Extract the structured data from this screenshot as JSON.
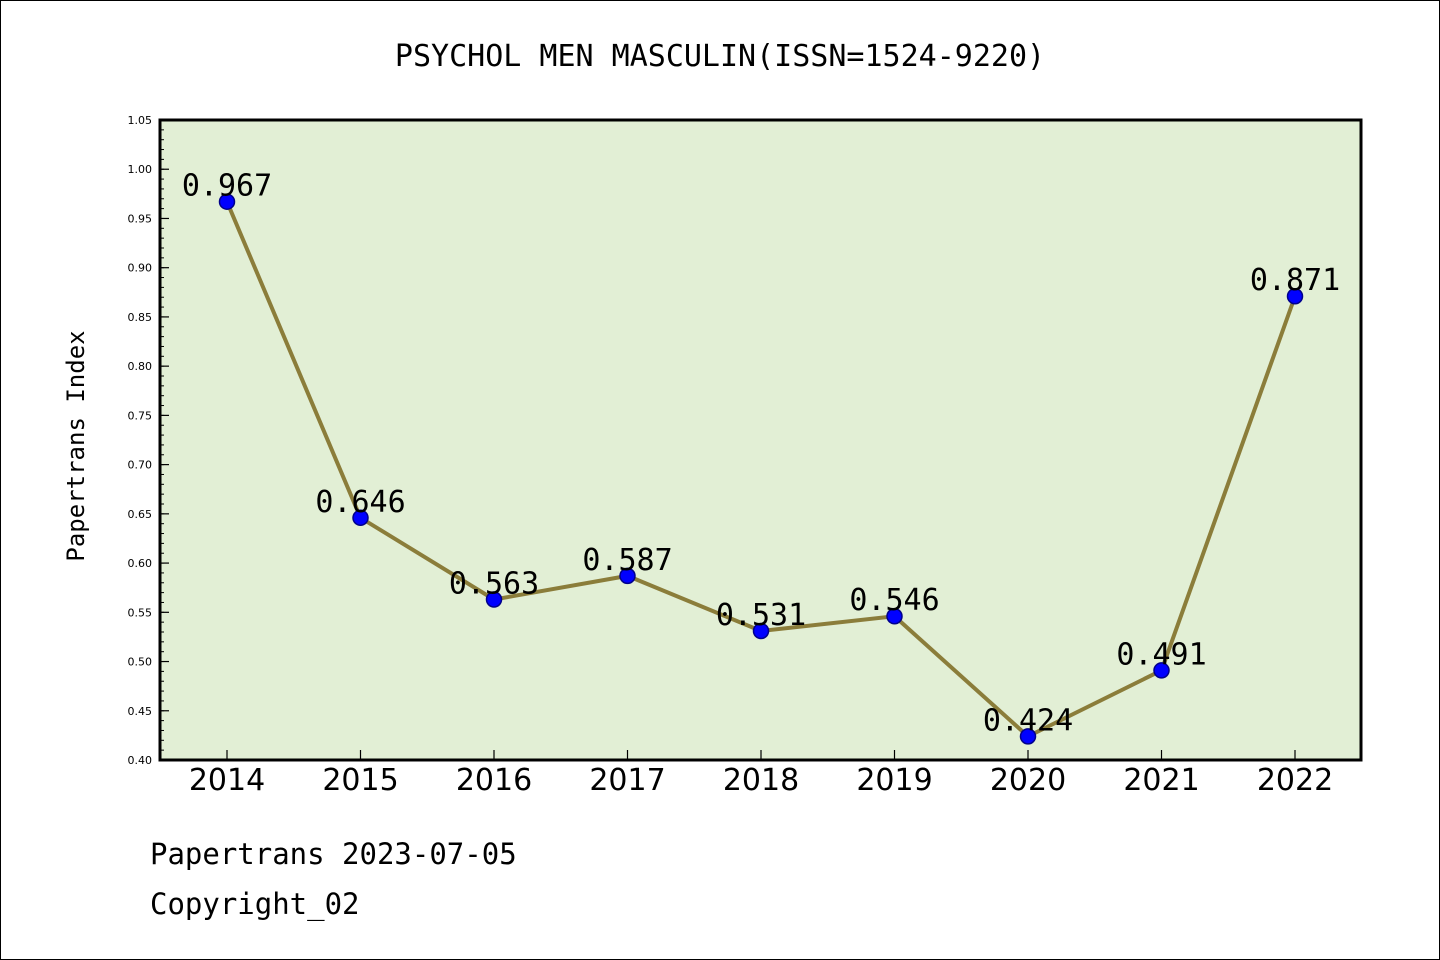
{
  "chart_data": {
    "type": "line",
    "title": "PSYCHOL MEN MASCULIN(ISSN=1524-9220)",
    "xlabel": "",
    "ylabel": "Papertrans Index",
    "categories": [
      "2014",
      "2015",
      "2016",
      "2017",
      "2018",
      "2019",
      "2020",
      "2021",
      "2022"
    ],
    "series": [
      {
        "values": [
          0.967,
          0.646,
          0.563,
          0.587,
          0.531,
          0.546,
          0.424,
          0.491,
          0.871
        ]
      }
    ],
    "data_labels": [
      "0.967",
      "0.646",
      "0.563",
      "0.587",
      "0.531",
      "0.546",
      "0.424",
      "0.491",
      "0.871"
    ],
    "ylim": [
      0.4,
      1.05
    ],
    "yticks": [
      "0.40",
      "0.45",
      "0.50",
      "0.55",
      "0.60",
      "0.65",
      "0.70",
      "0.75",
      "0.80",
      "0.85",
      "0.90",
      "0.95",
      "1.00",
      "1.05"
    ],
    "grid": false,
    "legend": "none",
    "colors": {
      "plot_background": "#e2efd5",
      "line": "#8b7d3a",
      "marker_fill": "#0000ff",
      "marker_edge": "#00008b"
    }
  },
  "footer": {
    "line1": "Papertrans 2023-07-05",
    "line2": "Copyright_02"
  }
}
